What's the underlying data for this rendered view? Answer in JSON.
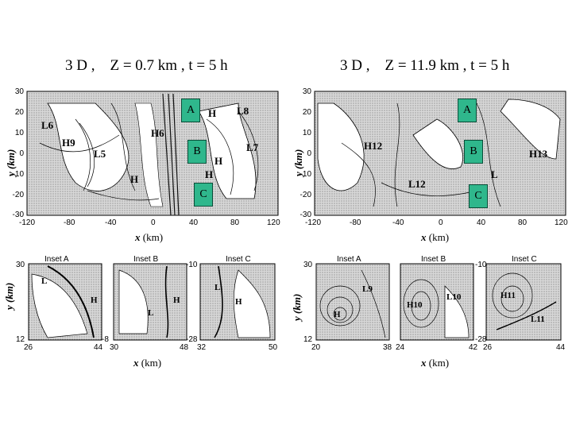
{
  "titles": {
    "left": "3 D ,    Z = 0.7 km , t = 5 h",
    "right": "3 D ,    Z = 11.9 km , t = 5 h"
  },
  "axes": {
    "main_ylabel": "y (km)",
    "main_xlabel_var": "x",
    "main_xlabel_unit": " (km)",
    "main_yticks": [
      "30",
      "20",
      "10",
      "0",
      "-10",
      "-20",
      "-30"
    ],
    "main_xticks": [
      "-120",
      "-80",
      "-40",
      "0",
      "40",
      "80",
      "120"
    ],
    "inset_ylabel": "y (km)",
    "inset_xlabel_var": "x",
    "inset_xlabel_unit": "(km)"
  },
  "boxes": [
    "A",
    "B",
    "C"
  ],
  "left": {
    "pressure_labels": [
      "L6",
      "H9",
      "L5",
      "H",
      "H6",
      "H",
      "L8",
      "L7",
      "H",
      "H"
    ],
    "insets": [
      {
        "title": "Inset  A",
        "ytop": "30",
        "ybot": "12",
        "xl": "26",
        "xr": "44"
      },
      {
        "title": "Inset  B",
        "ytop": "",
        "ybot": "-8",
        "xl": "30",
        "xr": "48"
      },
      {
        "title": "Inset  C",
        "ytop": "-10",
        "ybot": "-28",
        "xl": "32",
        "xr": "50"
      }
    ],
    "inset_markers": [
      "L",
      "H",
      "H",
      "L",
      "L",
      "H"
    ]
  },
  "right": {
    "pressure_labels": [
      "H12",
      "L12",
      "H13",
      "L"
    ],
    "insets": [
      {
        "title": "Inset  A",
        "ytop": "30",
        "ybot": "12",
        "xl": "20",
        "xr": "38"
      },
      {
        "title": "Inset  B",
        "ytop": "",
        "ybot": "",
        "xl": "24",
        "xr": "42"
      },
      {
        "title": "Inset  C",
        "ytop": "-10",
        "ybot": "-28",
        "xl": "26",
        "xr": "44"
      }
    ],
    "inset_markers": [
      "L9",
      "H",
      "H10",
      "L10",
      "H11",
      "L11"
    ]
  }
}
